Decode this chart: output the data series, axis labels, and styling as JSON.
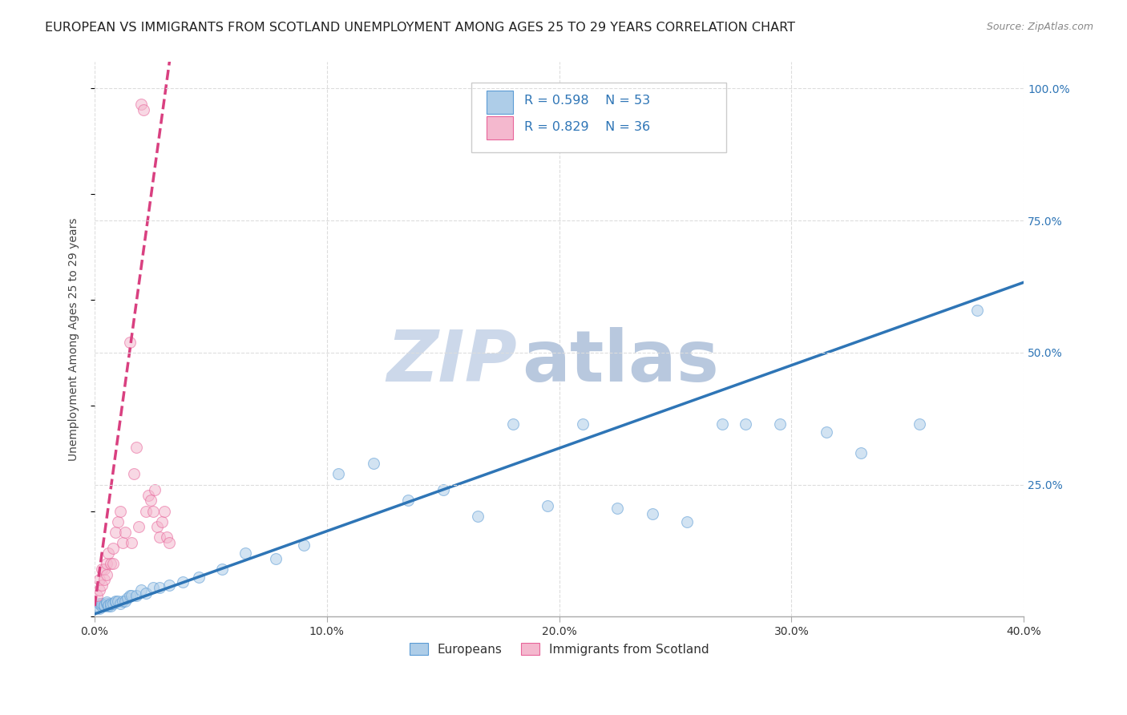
{
  "title": "EUROPEAN VS IMMIGRANTS FROM SCOTLAND UNEMPLOYMENT AMONG AGES 25 TO 29 YEARS CORRELATION CHART",
  "source": "Source: ZipAtlas.com",
  "ylabel": "Unemployment Among Ages 25 to 29 years",
  "xlim": [
    0.0,
    0.4
  ],
  "ylim": [
    0.0,
    1.05
  ],
  "xtick_labels": [
    "0.0%",
    "10.0%",
    "20.0%",
    "30.0%",
    "40.0%"
  ],
  "xtick_vals": [
    0.0,
    0.1,
    0.2,
    0.3,
    0.4
  ],
  "ytick_labels": [
    "25.0%",
    "50.0%",
    "75.0%",
    "100.0%"
  ],
  "ytick_vals": [
    0.25,
    0.5,
    0.75,
    1.0
  ],
  "blue_fill": "#aecde8",
  "blue_edge": "#5b9bd5",
  "pink_fill": "#f4b8ce",
  "pink_edge": "#e8649a",
  "blue_line_color": "#2e75b6",
  "pink_line_color": "#d94080",
  "legend_text_color": "#2e75b6",
  "r_blue": "0.598",
  "n_blue": "53",
  "r_pink": "0.829",
  "n_pink": "36",
  "blue_x": [
    0.001,
    0.002,
    0.002,
    0.003,
    0.003,
    0.004,
    0.004,
    0.005,
    0.005,
    0.006,
    0.006,
    0.007,
    0.007,
    0.008,
    0.009,
    0.009,
    0.01,
    0.011,
    0.012,
    0.013,
    0.014,
    0.015,
    0.016,
    0.018,
    0.02,
    0.022,
    0.025,
    0.028,
    0.032,
    0.038,
    0.045,
    0.055,
    0.065,
    0.078,
    0.09,
    0.105,
    0.12,
    0.135,
    0.15,
    0.165,
    0.18,
    0.195,
    0.21,
    0.225,
    0.24,
    0.255,
    0.27,
    0.28,
    0.295,
    0.315,
    0.33,
    0.355,
    0.38
  ],
  "blue_y": [
    0.02,
    0.015,
    0.025,
    0.02,
    0.025,
    0.02,
    0.022,
    0.025,
    0.028,
    0.02,
    0.022,
    0.02,
    0.025,
    0.025,
    0.028,
    0.03,
    0.03,
    0.025,
    0.03,
    0.03,
    0.035,
    0.04,
    0.04,
    0.04,
    0.05,
    0.045,
    0.055,
    0.055,
    0.06,
    0.065,
    0.075,
    0.09,
    0.12,
    0.11,
    0.135,
    0.27,
    0.29,
    0.22,
    0.24,
    0.19,
    0.365,
    0.21,
    0.365,
    0.205,
    0.195,
    0.18,
    0.365,
    0.365,
    0.365,
    0.35,
    0.31,
    0.365,
    0.58
  ],
  "pink_x": [
    0.001,
    0.002,
    0.002,
    0.003,
    0.003,
    0.004,
    0.004,
    0.005,
    0.005,
    0.006,
    0.007,
    0.008,
    0.008,
    0.009,
    0.01,
    0.011,
    0.012,
    0.013,
    0.015,
    0.016,
    0.017,
    0.018,
    0.019,
    0.02,
    0.021,
    0.022,
    0.023,
    0.024,
    0.025,
    0.026,
    0.027,
    0.028,
    0.029,
    0.03,
    0.031,
    0.032
  ],
  "pink_y": [
    0.04,
    0.05,
    0.07,
    0.06,
    0.09,
    0.07,
    0.09,
    0.08,
    0.1,
    0.12,
    0.1,
    0.1,
    0.13,
    0.16,
    0.18,
    0.2,
    0.14,
    0.16,
    0.52,
    0.14,
    0.27,
    0.32,
    0.17,
    0.97,
    0.96,
    0.2,
    0.23,
    0.22,
    0.2,
    0.24,
    0.17,
    0.15,
    0.18,
    0.2,
    0.15,
    0.14
  ],
  "marker_size": 100,
  "marker_alpha": 0.55,
  "title_fontsize": 11.5,
  "label_fontsize": 10,
  "tick_fontsize": 10,
  "blue_slope": 1.57,
  "blue_intercept": 0.005,
  "pink_slope": 32.0,
  "pink_intercept": 0.02
}
